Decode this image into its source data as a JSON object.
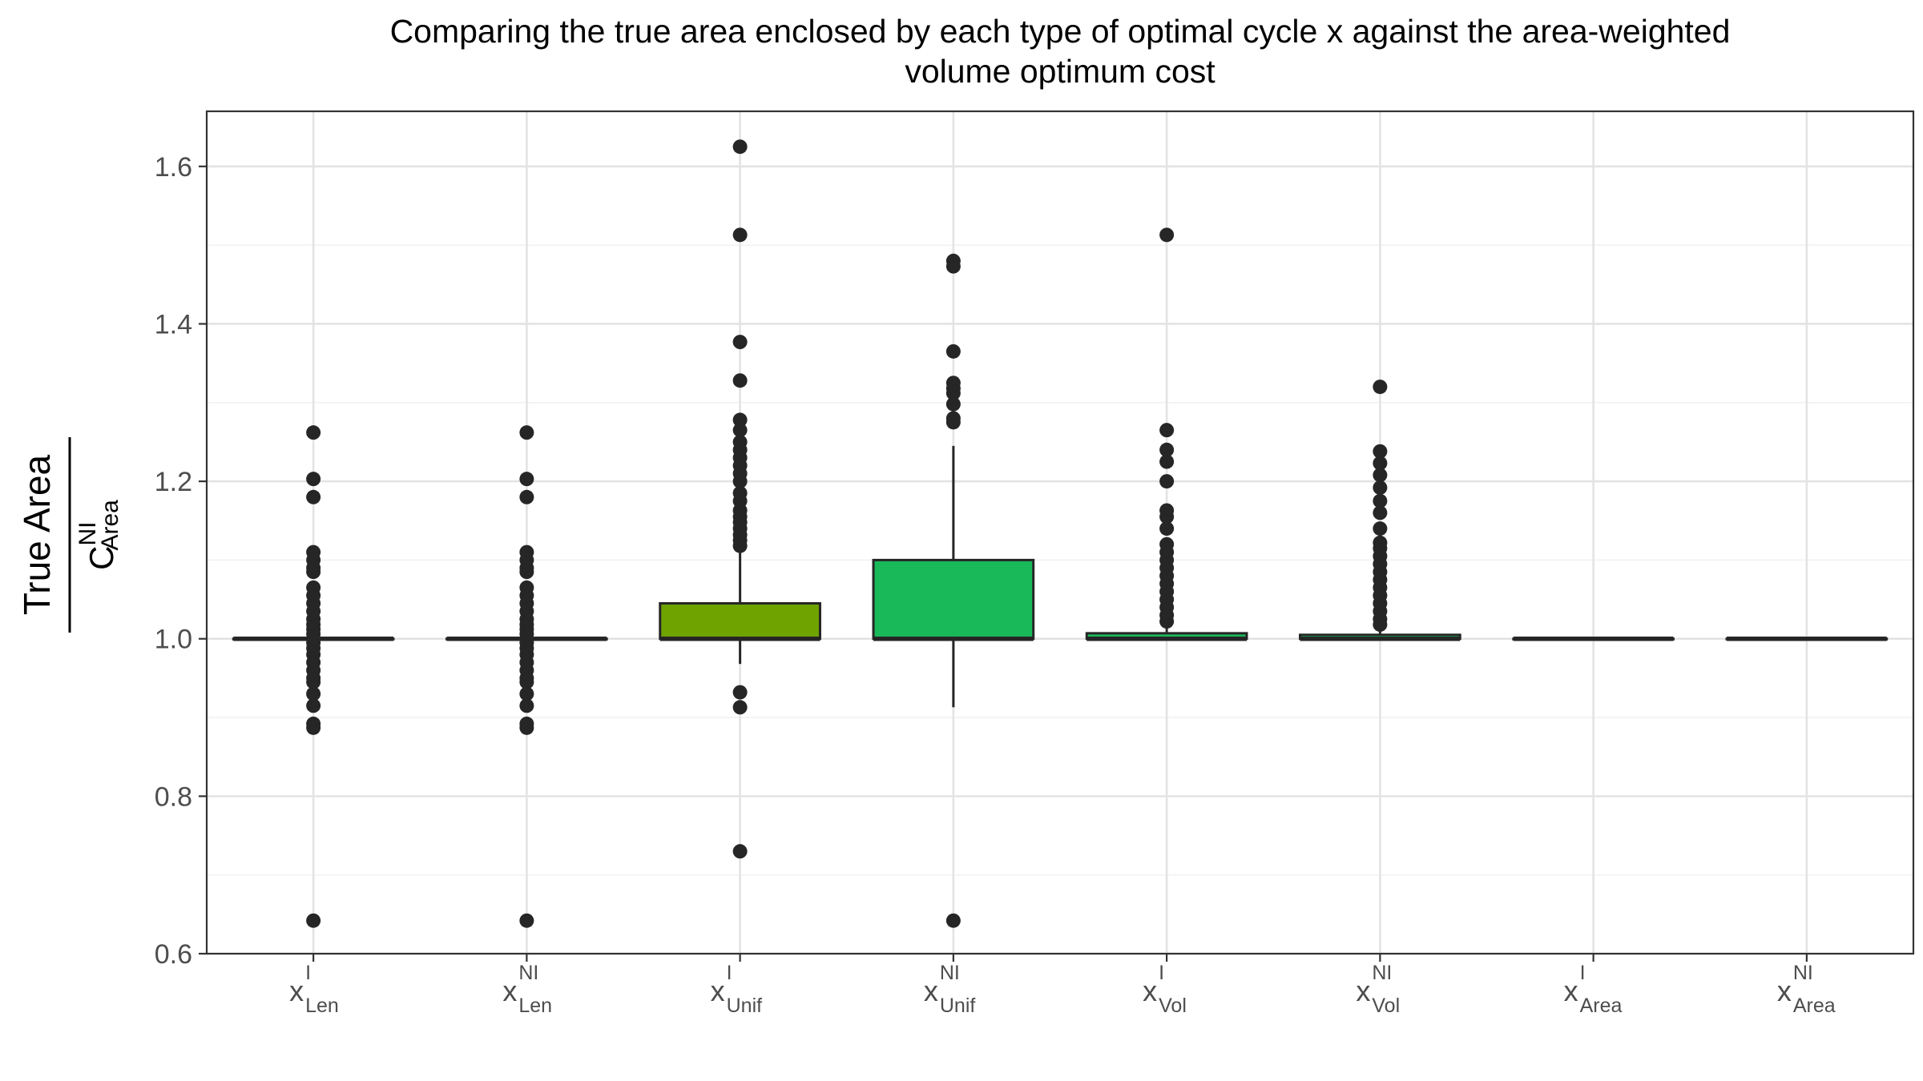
{
  "chart_data": {
    "type": "boxplot",
    "title": "Comparing the true area enclosed by each type of optimal cycle x against the area-weighted volume optimum cost",
    "title_lines": [
      "Comparing the true area enclosed by each type of optimal cycle x against the area-weighted",
      "volume optimum cost"
    ],
    "xlabel": "",
    "ylabel": {
      "numerator": "True Area",
      "denominator": {
        "base": "C",
        "superscript": "NI",
        "subscript": "Area"
      }
    },
    "ylim": [
      0.6,
      1.67
    ],
    "yticks": [
      0.6,
      0.8,
      1.0,
      1.2,
      1.4,
      1.6
    ],
    "ytick_labels": [
      "0.6",
      "0.8",
      "1.0",
      "1.2",
      "1.4",
      "1.6"
    ],
    "categories": [
      {
        "base": "x",
        "superscript": "I",
        "subscript": "Len"
      },
      {
        "base": "x",
        "superscript": "NI",
        "subscript": "Len"
      },
      {
        "base": "x",
        "superscript": "I",
        "subscript": "Unif"
      },
      {
        "base": "x",
        "superscript": "NI",
        "subscript": "Unif"
      },
      {
        "base": "x",
        "superscript": "I",
        "subscript": "Vol"
      },
      {
        "base": "x",
        "superscript": "NI",
        "subscript": "Vol"
      },
      {
        "base": "x",
        "superscript": "I",
        "subscript": "Area"
      },
      {
        "base": "x",
        "superscript": "NI",
        "subscript": "Area"
      }
    ],
    "boxes": [
      {
        "q1": 1.0,
        "median": 1.0,
        "q3": 1.0,
        "whisker_low": 1.0,
        "whisker_high": 1.0,
        "fill": "#ffffff",
        "outliers": [
          1.262,
          1.203,
          1.18,
          1.11,
          1.1,
          1.09,
          1.085,
          1.065,
          1.055,
          1.045,
          1.035,
          1.025,
          1.018,
          1.012,
          1.006,
          0.995,
          0.988,
          0.98,
          0.97,
          0.96,
          0.95,
          0.945,
          0.93,
          0.915,
          0.892,
          0.887,
          0.642
        ]
      },
      {
        "q1": 1.0,
        "median": 1.0,
        "q3": 1.0,
        "whisker_low": 1.0,
        "whisker_high": 1.0,
        "fill": "#ffffff",
        "outliers": [
          1.262,
          1.203,
          1.18,
          1.11,
          1.1,
          1.09,
          1.085,
          1.065,
          1.055,
          1.045,
          1.035,
          1.025,
          1.018,
          1.012,
          1.006,
          0.995,
          0.988,
          0.98,
          0.97,
          0.96,
          0.95,
          0.945,
          0.93,
          0.915,
          0.892,
          0.887,
          0.642
        ]
      },
      {
        "q1": 1.0,
        "median": 1.0,
        "q3": 1.045,
        "whisker_low": 0.968,
        "whisker_high": 1.11,
        "fill": "#6fa300",
        "outliers": [
          1.625,
          1.513,
          1.377,
          1.328,
          1.278,
          1.265,
          1.25,
          1.24,
          1.23,
          1.22,
          1.21,
          1.2,
          1.185,
          1.175,
          1.163,
          1.155,
          1.148,
          1.14,
          1.132,
          1.125,
          1.118,
          0.932,
          0.913,
          0.73
        ]
      },
      {
        "q1": 1.0,
        "median": 1.0,
        "q3": 1.1,
        "whisker_low": 0.913,
        "whisker_high": 1.245,
        "fill": "#19b95a",
        "outliers": [
          1.48,
          1.473,
          1.365,
          1.325,
          1.318,
          1.312,
          1.298,
          1.28,
          1.275,
          0.642
        ]
      },
      {
        "q1": 1.0,
        "median": 1.0,
        "q3": 1.007,
        "whisker_low": 1.0,
        "whisker_high": 1.017,
        "fill": "#19b95a",
        "outliers": [
          1.513,
          1.265,
          1.24,
          1.225,
          1.2,
          1.163,
          1.155,
          1.14,
          1.12,
          1.11,
          1.1,
          1.09,
          1.08,
          1.07,
          1.06,
          1.05,
          1.04,
          1.03,
          1.022
        ]
      },
      {
        "q1": 1.0,
        "median": 1.0,
        "q3": 1.005,
        "whisker_low": 1.0,
        "whisker_high": 1.014,
        "fill": "#19b95a",
        "outliers": [
          1.32,
          1.238,
          1.223,
          1.208,
          1.192,
          1.175,
          1.16,
          1.14,
          1.122,
          1.115,
          1.105,
          1.095,
          1.085,
          1.075,
          1.065,
          1.055,
          1.045,
          1.035,
          1.025,
          1.018
        ]
      },
      {
        "q1": 1.0,
        "median": 1.0,
        "q3": 1.0,
        "whisker_low": 1.0,
        "whisker_high": 1.0,
        "fill": "#ffffff",
        "outliers": []
      },
      {
        "q1": 1.0,
        "median": 1.0,
        "q3": 1.0,
        "whisker_low": 1.0,
        "whisker_high": 1.0,
        "fill": "#ffffff",
        "outliers": []
      }
    ],
    "grid": true,
    "legend": "none"
  }
}
